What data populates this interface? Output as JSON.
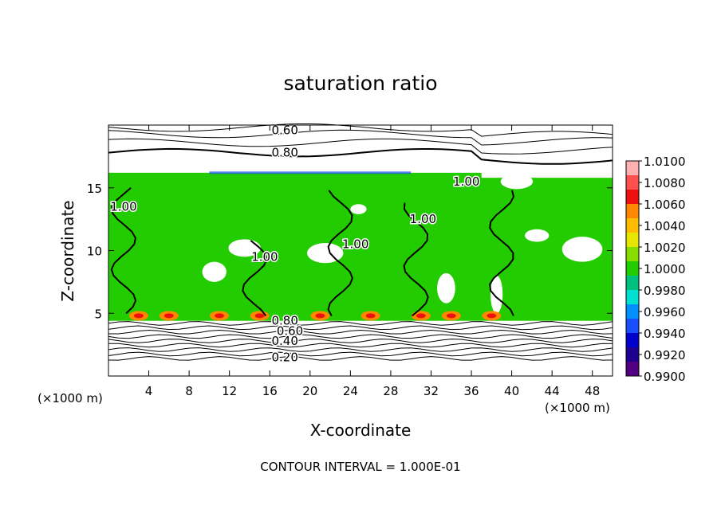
{
  "chart_data": {
    "type": "heatmap",
    "title": "saturation ratio",
    "xlabel": "X-coordinate",
    "ylabel": "Z-coordinate",
    "x_unit_left": "(×1000 m)",
    "x_unit_right": "(×1000 m)",
    "footer": "CONTOUR INTERVAL = 1.000E-01",
    "xlim": [
      0,
      50
    ],
    "ylim": [
      0,
      20
    ],
    "x_ticks": [
      4,
      8,
      12,
      16,
      20,
      24,
      28,
      32,
      36,
      40,
      44,
      48
    ],
    "y_ticks": [
      5,
      10,
      15
    ],
    "colorbar": {
      "labels": [
        "1.0100",
        "1.0080",
        "1.0060",
        "1.0040",
        "1.0020",
        "1.0000",
        "0.9980",
        "0.9960",
        "0.9940",
        "0.9920",
        "0.9900"
      ],
      "colors": [
        "#ffb0b0",
        "#ff5050",
        "#ee1010",
        "#ff8800",
        "#ffbb00",
        "#e6e600",
        "#88dd00",
        "#22cc00",
        "#00c080",
        "#00e0d0",
        "#0090ff",
        "#1850ff",
        "#0000cc",
        "#200090",
        "#500080"
      ]
    },
    "contour_labels": [
      {
        "text": "0.60",
        "x": 17.5,
        "y": 19.6
      },
      {
        "text": "0.80",
        "x": 17.5,
        "y": 17.8
      },
      {
        "text": "0.20",
        "x": 17.5,
        "y": 1.5
      },
      {
        "text": "0.40",
        "x": 17.5,
        "y": 2.8
      },
      {
        "text": "0.60",
        "x": 18.0,
        "y": 3.6
      },
      {
        "text": "0.80",
        "x": 17.5,
        "y": 4.4
      },
      {
        "text": "1.00",
        "x": 1.5,
        "y": 13.5
      },
      {
        "text": "1.00",
        "x": 15.5,
        "y": 9.5
      },
      {
        "text": "1.00",
        "x": 24.5,
        "y": 10.5
      },
      {
        "text": "1.00",
        "x": 31.2,
        "y": 12.5
      },
      {
        "text": "1.00",
        "x": 35.5,
        "y": 15.5
      }
    ]
  }
}
